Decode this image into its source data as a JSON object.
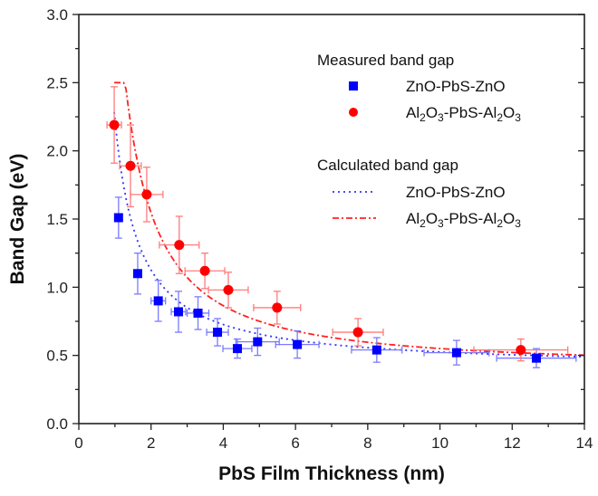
{
  "chart_data": {
    "type": "scatter",
    "title": "",
    "xlabel": "PbS Film Thickness (nm)",
    "ylabel": "Band Gap (eV)",
    "xlim": [
      0,
      14
    ],
    "ylim": [
      0.0,
      3.0
    ],
    "xticks": [
      0,
      2,
      4,
      6,
      8,
      10,
      12,
      14
    ],
    "xtick_labels": [
      "0",
      "2",
      "4",
      "6",
      "8",
      "10",
      "12",
      "14"
    ],
    "yticks": [
      0.0,
      0.5,
      1.0,
      1.5,
      2.0,
      2.5,
      3.0
    ],
    "ytick_labels": [
      "0.0",
      "0.5",
      "1.0",
      "1.5",
      "2.0",
      "2.5",
      "3.0"
    ],
    "grid": false,
    "legend_position": "top-right",
    "legend": {
      "measured_heading": "Measured band gap",
      "calculated_heading": "Calculated band gap",
      "entries": [
        {
          "group": "measured",
          "label_parts": [
            [
              "ZnO-PbS-ZnO",
              ""
            ]
          ],
          "marker": "square",
          "color": "#0000ff"
        },
        {
          "group": "measured",
          "label_parts": [
            [
              "Al",
              ""
            ],
            [
              "2",
              "sub"
            ],
            [
              "O",
              ""
            ],
            [
              "3",
              "sub"
            ],
            [
              "-PbS-Al",
              ""
            ],
            [
              "2",
              "sub"
            ],
            [
              "O",
              ""
            ],
            [
              "3",
              "sub"
            ]
          ],
          "marker": "circle",
          "color": "#ff0000"
        },
        {
          "group": "calculated",
          "label_parts": [
            [
              "ZnO-PbS-ZnO",
              ""
            ]
          ],
          "line": "dotted",
          "color": "#3333ff"
        },
        {
          "group": "calculated",
          "label_parts": [
            [
              "Al",
              ""
            ],
            [
              "2",
              "sub"
            ],
            [
              "O",
              ""
            ],
            [
              "3",
              "sub"
            ],
            [
              "-PbS-Al",
              ""
            ],
            [
              "2",
              "sub"
            ],
            [
              "O",
              ""
            ],
            [
              "3",
              "sub"
            ]
          ],
          "line": "dash-dot",
          "color": "#ff2222"
        }
      ]
    },
    "series": [
      {
        "name": "ZnO-PbS-ZnO (measured)",
        "kind": "scatter",
        "marker": "square",
        "color": "#0000ff",
        "errcolor": "#7b7bff",
        "points": [
          {
            "x": 1.1,
            "y": 1.51,
            "xerr": 0.1,
            "yerr": 0.15
          },
          {
            "x": 1.63,
            "y": 1.1,
            "xerr": 0.1,
            "yerr": 0.15
          },
          {
            "x": 2.2,
            "y": 0.9,
            "xerr": 0.2,
            "yerr": 0.15
          },
          {
            "x": 2.76,
            "y": 0.82,
            "xerr": 0.2,
            "yerr": 0.15
          },
          {
            "x": 3.3,
            "y": 0.81,
            "xerr": 0.3,
            "yerr": 0.12
          },
          {
            "x": 3.84,
            "y": 0.67,
            "xerr": 0.3,
            "yerr": 0.1
          },
          {
            "x": 4.39,
            "y": 0.55,
            "xerr": 0.4,
            "yerr": 0.07
          },
          {
            "x": 4.95,
            "y": 0.6,
            "xerr": 0.6,
            "yerr": 0.1
          },
          {
            "x": 6.05,
            "y": 0.58,
            "xerr": 0.6,
            "yerr": 0.1
          },
          {
            "x": 8.25,
            "y": 0.54,
            "xerr": 0.7,
            "yerr": 0.09
          },
          {
            "x": 10.46,
            "y": 0.52,
            "xerr": 0.9,
            "yerr": 0.09
          },
          {
            "x": 12.67,
            "y": 0.48,
            "xerr": 1.1,
            "yerr": 0.07
          }
        ]
      },
      {
        "name": "Al2O3-PbS-Al2O3 (measured)",
        "kind": "scatter",
        "marker": "circle",
        "color": "#ff0000",
        "errcolor": "#ff7b7b",
        "points": [
          {
            "x": 0.98,
            "y": 2.19,
            "xerr": 0.2,
            "yerr": 0.28
          },
          {
            "x": 1.43,
            "y": 1.89,
            "xerr": 0.3,
            "yerr": 0.3
          },
          {
            "x": 1.88,
            "y": 1.68,
            "xerr": 0.45,
            "yerr": 0.2
          },
          {
            "x": 2.78,
            "y": 1.31,
            "xerr": 0.55,
            "yerr": 0.21
          },
          {
            "x": 3.49,
            "y": 1.12,
            "xerr": 0.55,
            "yerr": 0.13
          },
          {
            "x": 4.14,
            "y": 0.98,
            "xerr": 0.55,
            "yerr": 0.13
          },
          {
            "x": 5.49,
            "y": 0.85,
            "xerr": 0.65,
            "yerr": 0.12
          },
          {
            "x": 7.73,
            "y": 0.67,
            "xerr": 0.7,
            "yerr": 0.1
          },
          {
            "x": 12.24,
            "y": 0.54,
            "xerr": 1.3,
            "yerr": 0.08
          }
        ]
      },
      {
        "name": "ZnO-PbS-ZnO (calculated)",
        "kind": "line",
        "style": "dotted",
        "color": "#3333ff",
        "model": {
          "Eg_bulk": 0.41,
          "A": 1.25,
          "power": 1.05,
          "x0": 0.3
        },
        "x_range": [
          0.98,
          14
        ]
      },
      {
        "name": "Al2O3-PbS-Al2O3 (calculated)",
        "kind": "line",
        "style": "dash-dot",
        "color": "#ff2222",
        "model": {
          "Eg_bulk": 0.41,
          "A": 2.45,
          "power": 1.25,
          "x0": 0.15
        },
        "x_range": [
          0.98,
          14
        ]
      }
    ]
  }
}
